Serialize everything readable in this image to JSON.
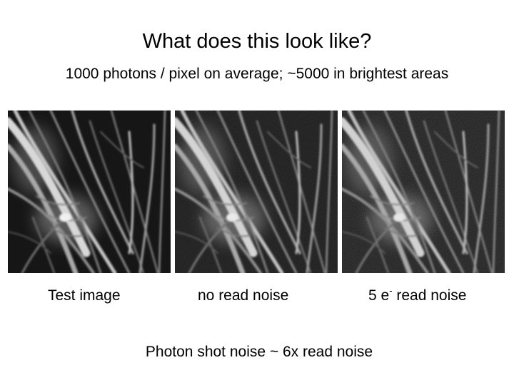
{
  "title": "What does this look like?",
  "subtitle": "1000 photons / pixel on average; ~5000 in brightest areas",
  "panels": [
    {
      "caption": "Test image"
    },
    {
      "caption": "no read noise"
    },
    {
      "caption_prefix": "5 e",
      "caption_superscript": "-",
      "caption_suffix": " read noise"
    }
  ],
  "footer": "Photon shot noise ~ 6x read noise"
}
